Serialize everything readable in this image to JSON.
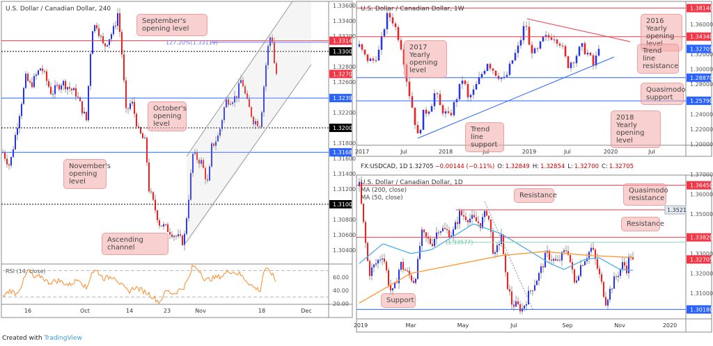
{
  "footer": {
    "prefix": "Created with",
    "brand": "TradingView"
  },
  "chart_data": [
    {
      "type": "candlestick",
      "title": "U.S. Dollar / Canadian Dollar, 240",
      "ylim": [
        1.302,
        1.337
      ],
      "yticks": [
        "1.33600",
        "1.33400",
        "1.33200",
        "1.32800",
        "1.32600",
        "1.32200",
        "1.31800",
        "1.31600",
        "1.31400",
        "1.31200",
        "1.30800",
        "1.30600",
        "1.30400"
      ],
      "ytick_values": [
        1.336,
        1.334,
        1.332,
        1.328,
        1.326,
        1.322,
        1.318,
        1.316,
        1.314,
        1.312,
        1.308,
        1.306,
        1.304
      ],
      "xticks": [
        "16",
        "Oct",
        "14",
        "23",
        "Nov",
        "18",
        "Dec"
      ],
      "levels": [
        {
          "label": "1.33140",
          "value": 1.3314,
          "color": "#f23645",
          "style": "solid"
        },
        {
          "label": "1.33000",
          "value": 1.33,
          "color": "#000000",
          "style": "dotted"
        },
        {
          "label": "1.32390",
          "value": 1.3239,
          "color": "#2962ff",
          "style": "solid"
        },
        {
          "label": "1.32000",
          "value": 1.32,
          "color": "#000000",
          "style": "dotted"
        },
        {
          "label": "1.31680",
          "value": 1.3168,
          "color": "#2962ff",
          "style": "solid"
        },
        {
          "label": "1.31000",
          "value": 1.31,
          "color": "#000000",
          "style": "dotted"
        }
      ],
      "last_price": "1.32705",
      "last_value": 1.32705,
      "fib_label": "127.20%(1.33119)",
      "fib_value": 1.33119,
      "path": [
        [
          0,
          1.3168
        ],
        [
          10,
          1.315
        ],
        [
          20,
          1.32
        ],
        [
          33,
          1.3265
        ],
        [
          40,
          1.3255
        ],
        [
          55,
          1.328
        ],
        [
          70,
          1.3245
        ],
        [
          85,
          1.326
        ],
        [
          105,
          1.3245
        ],
        [
          120,
          1.321
        ],
        [
          128,
          1.333
        ],
        [
          135,
          1.3335
        ],
        [
          145,
          1.3305
        ],
        [
          160,
          1.333
        ],
        [
          165,
          1.335
        ],
        [
          170,
          1.331
        ],
        [
          177,
          1.322
        ],
        [
          185,
          1.3235
        ],
        [
          195,
          1.3195
        ],
        [
          205,
          1.318
        ],
        [
          210,
          1.312
        ],
        [
          225,
          1.3075
        ],
        [
          240,
          1.3065
        ],
        [
          260,
          1.305
        ],
        [
          267,
          1.311
        ],
        [
          273,
          1.3165
        ],
        [
          285,
          1.3155
        ],
        [
          295,
          1.3125
        ],
        [
          300,
          1.3175
        ],
        [
          310,
          1.319
        ],
        [
          320,
          1.3235
        ],
        [
          335,
          1.324
        ],
        [
          343,
          1.3265
        ],
        [
          350,
          1.3235
        ],
        [
          360,
          1.321
        ],
        [
          370,
          1.3205
        ],
        [
          377,
          1.3275
        ],
        [
          383,
          1.332
        ],
        [
          387,
          1.3315
        ],
        [
          390,
          1.3285
        ],
        [
          393,
          1.32705
        ]
      ],
      "rsi": {
        "label": "RSI (14, close)",
        "yticks": [
          "60.00",
          "40.00",
          "20.00"
        ],
        "ytick_values": [
          60,
          40,
          20
        ],
        "bands": [
          70,
          30
        ],
        "path": [
          [
            0,
            30
          ],
          [
            10,
            40
          ],
          [
            20,
            35
          ],
          [
            30,
            55
          ],
          [
            37,
            72
          ],
          [
            45,
            58
          ],
          [
            55,
            62
          ],
          [
            65,
            52
          ],
          [
            80,
            55
          ],
          [
            95,
            48
          ],
          [
            110,
            58
          ],
          [
            120,
            42
          ],
          [
            128,
            68
          ],
          [
            135,
            70
          ],
          [
            145,
            58
          ],
          [
            160,
            62
          ],
          [
            170,
            48
          ],
          [
            180,
            38
          ],
          [
            190,
            45
          ],
          [
            200,
            40
          ],
          [
            210,
            35
          ],
          [
            225,
            22
          ],
          [
            235,
            40
          ],
          [
            245,
            35
          ],
          [
            260,
            45
          ],
          [
            268,
            60
          ],
          [
            273,
            78
          ],
          [
            285,
            68
          ],
          [
            290,
            55
          ],
          [
            300,
            58
          ],
          [
            315,
            62
          ],
          [
            325,
            70
          ],
          [
            340,
            65
          ],
          [
            350,
            55
          ],
          [
            360,
            45
          ],
          [
            370,
            40
          ],
          [
            375,
            72
          ],
          [
            385,
            68
          ],
          [
            393,
            52
          ]
        ]
      }
    },
    {
      "type": "candlestick",
      "title": "U.S. Dollar / Canadian Dollar, 1W",
      "ylim": [
        1.199,
        1.385
      ],
      "yticks": [
        "1.36000",
        "1.32000",
        "1.30000",
        "1.28000",
        "1.24000",
        "1.22000",
        "1.20000"
      ],
      "ytick_values": [
        1.36,
        1.32,
        1.3,
        1.28,
        1.24,
        1.22,
        1.2
      ],
      "xticks": [
        "2017",
        "Jul",
        "2018",
        "Jul",
        "2019",
        "Jul",
        "2020",
        "Jul"
      ],
      "levels": [
        {
          "label": "1.38140",
          "value": 1.3814,
          "color": "#f23645",
          "style": "solid"
        },
        {
          "label": "1.34340",
          "value": 1.3434,
          "color": "#f23645",
          "style": "solid"
        },
        {
          "label": "1.28870",
          "value": 1.2887,
          "color": "#2962ff",
          "style": "solid"
        },
        {
          "label": "1.25790",
          "value": 1.2579,
          "color": "#2962ff",
          "style": "solid"
        }
      ],
      "last_price": "1.32705",
      "last_value": 1.32705,
      "path": [
        [
          0,
          1.33
        ],
        [
          9,
          1.315
        ],
        [
          19,
          1.31
        ],
        [
          29,
          1.325
        ],
        [
          39,
          1.37
        ],
        [
          46,
          1.37
        ],
        [
          54,
          1.35
        ],
        [
          62,
          1.325
        ],
        [
          69,
          1.28
        ],
        [
          76,
          1.25
        ],
        [
          84,
          1.21
        ],
        [
          92,
          1.24
        ],
        [
          102,
          1.25
        ],
        [
          109,
          1.27
        ],
        [
          116,
          1.25
        ],
        [
          129,
          1.235
        ],
        [
          139,
          1.26
        ],
        [
          149,
          1.29
        ],
        [
          156,
          1.26
        ],
        [
          164,
          1.27
        ],
        [
          174,
          1.29
        ],
        [
          184,
          1.31
        ],
        [
          196,
          1.295
        ],
        [
          209,
          1.285
        ],
        [
          219,
          1.31
        ],
        [
          229,
          1.33
        ],
        [
          239,
          1.365
        ],
        [
          244,
          1.33
        ],
        [
          254,
          1.32
        ],
        [
          264,
          1.34
        ],
        [
          279,
          1.345
        ],
        [
          289,
          1.335
        ],
        [
          299,
          1.305
        ],
        [
          309,
          1.315
        ],
        [
          319,
          1.33
        ],
        [
          329,
          1.32
        ],
        [
          336,
          1.305
        ],
        [
          344,
          1.325
        ]
      ]
    },
    {
      "type": "candlestick",
      "title": "U.S. Dollar / Canadian Dollar, 1D",
      "ylim": [
        1.299,
        1.372
      ],
      "indicators": [
        "MA (200, close)",
        "MA (50, close)"
      ],
      "info": {
        "symbol": "FX:USDCAD, 1D",
        "price": "1.32705",
        "change": "−0.00144 (−0.11%)",
        "o_label": "O:",
        "o": "1.32849",
        "h_label": "H:",
        "h": "1.32854",
        "l_label": "L:",
        "l": "1.32700",
        "c_label": "C:",
        "c": "1.32705"
      },
      "yticks": [
        "1.37000",
        "1.36000",
        "1.35000",
        "1.33000",
        "1.32000",
        "1.31000"
      ],
      "ytick_values": [
        1.37,
        1.36,
        1.35,
        1.33,
        1.32,
        1.31
      ],
      "xticks": [
        "2019",
        "Mar",
        "May",
        "Jul",
        "Sep",
        "Nov",
        "2020"
      ],
      "levels": [
        {
          "label": "1.36450",
          "value": 1.3645,
          "color": "#f23645",
          "style": "solid"
        },
        {
          "label": "1.33820",
          "value": 1.3382,
          "color": "#f23645",
          "style": "solid"
        },
        {
          "label": "1.30180",
          "value": 1.3018,
          "color": "#2962ff",
          "style": "solid"
        }
      ],
      "qm_label": "1.3521",
      "qm_value": 1.3521,
      "fib_label": "(1.33577)",
      "fib_value": 1.33577,
      "last_price": "1.32705",
      "last_value": 1.32705,
      "path": [
        [
          0,
          1.364
        ],
        [
          9,
          1.335
        ],
        [
          14,
          1.32
        ],
        [
          24,
          1.325
        ],
        [
          34,
          1.33
        ],
        [
          44,
          1.312
        ],
        [
          49,
          1.31
        ],
        [
          59,
          1.325
        ],
        [
          69,
          1.32
        ],
        [
          79,
          1.316
        ],
        [
          84,
          1.325
        ],
        [
          89,
          1.34
        ],
        [
          104,
          1.335
        ],
        [
          114,
          1.343
        ],
        [
          134,
          1.34
        ],
        [
          144,
          1.35
        ],
        [
          164,
          1.347
        ],
        [
          174,
          1.345
        ],
        [
          184,
          1.352
        ],
        [
          189,
          1.34
        ],
        [
          194,
          1.327
        ],
        [
          204,
          1.34
        ],
        [
          209,
          1.32
        ],
        [
          219,
          1.305
        ],
        [
          234,
          1.302
        ],
        [
          244,
          1.31
        ],
        [
          259,
          1.32
        ],
        [
          269,
          1.33
        ],
        [
          284,
          1.325
        ],
        [
          299,
          1.333
        ],
        [
          309,
          1.315
        ],
        [
          319,
          1.325
        ],
        [
          334,
          1.333
        ],
        [
          344,
          1.32
        ],
        [
          354,
          1.306
        ],
        [
          364,
          1.315
        ],
        [
          379,
          1.325
        ],
        [
          384,
          1.3225
        ],
        [
          389,
          1.33
        ],
        [
          394,
          1.32705
        ]
      ],
      "ma200": [
        [
          0,
          1.305
        ],
        [
          74,
          1.32
        ],
        [
          204,
          1.329
        ],
        [
          264,
          1.331
        ],
        [
          334,
          1.329
        ],
        [
          394,
          1.328
        ]
      ],
      "ma50": [
        [
          0,
          1.325
        ],
        [
          34,
          1.335
        ],
        [
          74,
          1.33
        ],
        [
          104,
          1.332
        ],
        [
          164,
          1.345
        ],
        [
          204,
          1.34
        ],
        [
          274,
          1.325
        ],
        [
          294,
          1.322
        ],
        [
          324,
          1.327
        ],
        [
          344,
          1.328
        ],
        [
          374,
          1.322
        ],
        [
          394,
          1.3215
        ]
      ]
    }
  ],
  "callouts": {
    "sept": "September's opening level",
    "oct": "October's opening level",
    "nov": "November's opening level",
    "channel": "Ascending channel",
    "y2016": "2016 Yearly opening level",
    "y2017": "2017 Yearly opening level",
    "trend_res": "Trend line resistance",
    "qm_support": "Quasimodo support",
    "trend_sup": "Trend line support",
    "y2018": "2018 Yearly opening level",
    "resistance1": "Resistance",
    "qm_res": "Quasimodo resistance",
    "resistance2": "Resistance",
    "support": "Support"
  },
  "colors": {
    "up": "#2030ff",
    "down": "#ff1a1a",
    "wick": "#999999",
    "ma200": "#ff9a3c",
    "ma50": "#5ab0e8",
    "rsi": "#ff8a2a"
  }
}
